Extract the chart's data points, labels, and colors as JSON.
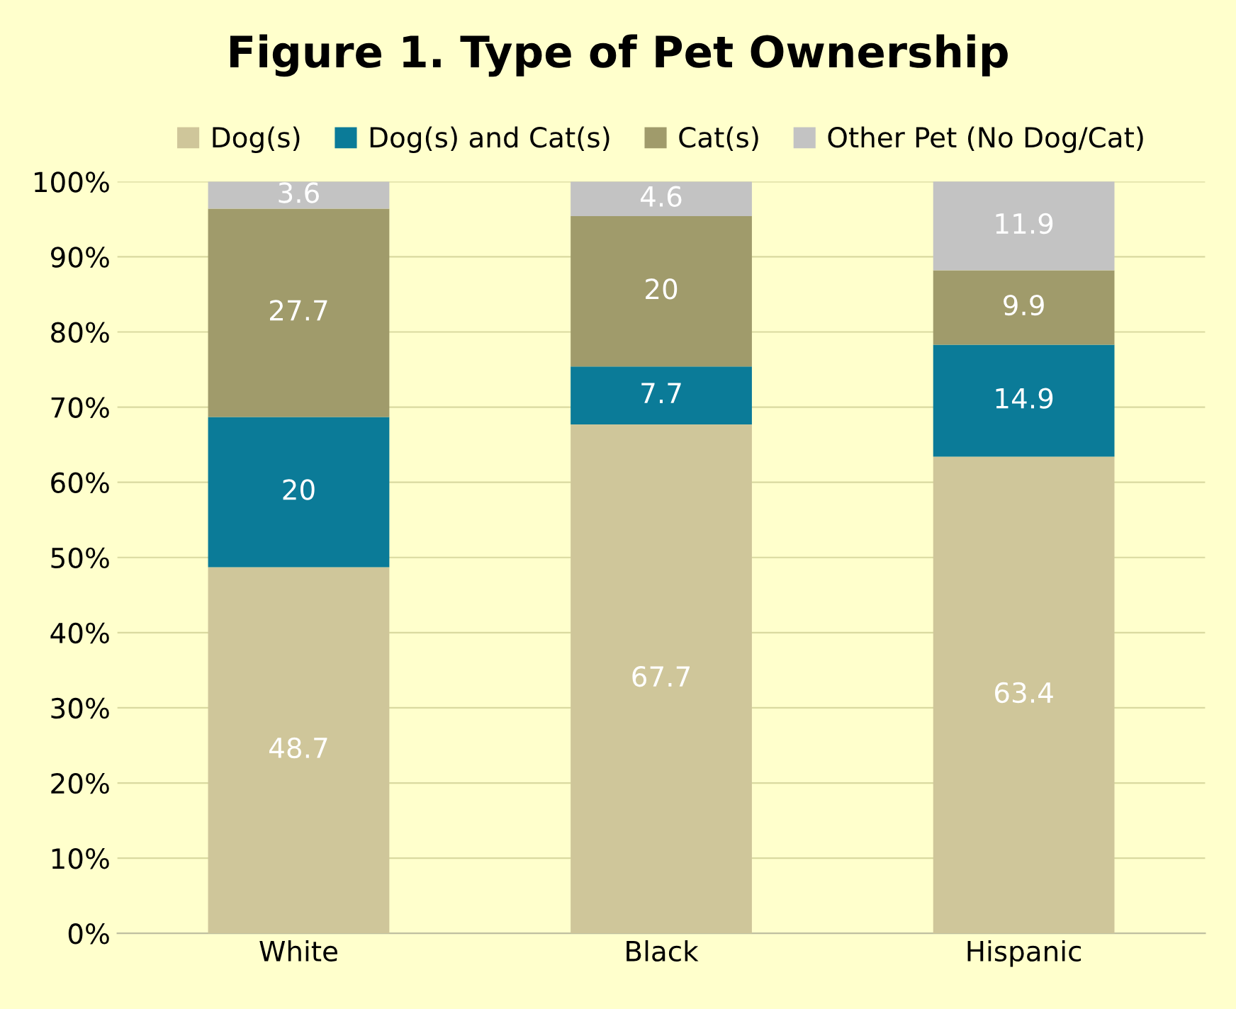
{
  "chart_data": {
    "type": "bar",
    "title": "Figure 1. Type of Pet Ownership",
    "categories": [
      "White",
      "Black",
      "Hispanic"
    ],
    "stacked": true,
    "series": [
      {
        "name": "Dog(s)",
        "color": "#cfc69a",
        "values": [
          48.7,
          67.7,
          63.4
        ]
      },
      {
        "name": "Dog(s) and Cat(s)",
        "color": "#0b7b98",
        "values": [
          20,
          7.7,
          14.9
        ]
      },
      {
        "name": "Cat(s)",
        "color": "#a09b6b",
        "values": [
          27.7,
          20,
          9.9
        ]
      },
      {
        "name": "Other Pet (No Dog/Cat)",
        "color": "#c3c3c3",
        "values": [
          3.6,
          4.6,
          11.9
        ]
      }
    ],
    "ylim": [
      0,
      100
    ],
    "yticks": [
      {
        "value": 0,
        "label": "0%"
      },
      {
        "value": 10,
        "label": "10%"
      },
      {
        "value": 20,
        "label": "20%"
      },
      {
        "value": 30,
        "label": "30%"
      },
      {
        "value": 40,
        "label": "40%"
      },
      {
        "value": 50,
        "label": "50%"
      },
      {
        "value": 60,
        "label": "60%"
      },
      {
        "value": 70,
        "label": "70%"
      },
      {
        "value": 80,
        "label": "80%"
      },
      {
        "value": 90,
        "label": "90%"
      },
      {
        "value": 100,
        "label": "100%"
      }
    ],
    "grid": "y",
    "legend": "top",
    "data_labels": true
  }
}
